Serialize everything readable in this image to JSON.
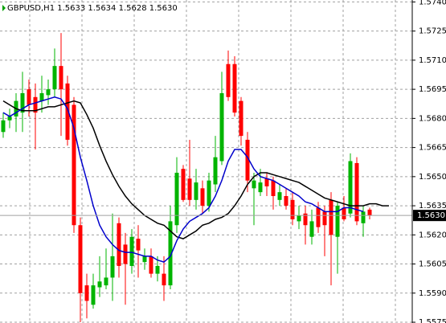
{
  "chart_data": {
    "type": "candlestick",
    "title": "GBPUSD,H1 1.5633 1.5634 1.5628 1.5630",
    "ohlc": {
      "open": [
        1.5673,
        1.5679,
        1.5681,
        1.5683,
        1.5695,
        1.5691,
        1.5689,
        1.5692,
        1.5695,
        1.5707,
        1.5698,
        1.5687,
        1.5625,
        1.5594,
        1.5584,
        1.5593,
        1.5594,
        1.5598,
        1.5626,
        1.5615,
        1.5604,
        1.5618,
        1.5606,
        1.5609,
        1.56,
        1.56,
        1.5594,
        1.5625,
        1.5654,
        1.5649,
        1.5638,
        1.5644,
        1.5635,
        1.5646,
        1.5658,
        1.5708,
        1.5708,
        1.5689,
        1.5669,
        1.5644,
        1.5642,
        1.5649,
        1.5648,
        1.5638,
        1.564,
        1.5638,
        1.5627,
        1.5631,
        1.5619,
        1.5634,
        1.5632,
        1.5638,
        1.5619,
        1.5634,
        1.5631,
        1.5657,
        1.5626,
        1.5633
      ],
      "high": [
        1.5683,
        1.5685,
        1.5693,
        1.5704,
        1.57,
        1.5698,
        1.5702,
        1.57,
        1.5716,
        1.5724,
        1.5702,
        1.5691,
        1.5629,
        1.56,
        1.56,
        1.5609,
        1.5613,
        1.5631,
        1.5629,
        1.5621,
        1.5623,
        1.5625,
        1.5613,
        1.5613,
        1.5609,
        1.5609,
        1.5635,
        1.566,
        1.5656,
        1.5669,
        1.5654,
        1.5648,
        1.5652,
        1.5671,
        1.5704,
        1.5715,
        1.5712,
        1.5691,
        1.5673,
        1.5652,
        1.5654,
        1.5652,
        1.565,
        1.5646,
        1.5644,
        1.5642,
        1.5635,
        1.5635,
        1.5633,
        1.5637,
        1.5635,
        1.5642,
        1.5637,
        1.564,
        1.5662,
        1.566,
        1.5635,
        1.5634
      ],
      "low": [
        1.567,
        1.5675,
        1.5673,
        1.5673,
        1.5681,
        1.5664,
        1.5683,
        1.5687,
        1.5691,
        1.5671,
        1.5666,
        1.5621,
        1.5575,
        1.5577,
        1.5582,
        1.5588,
        1.5592,
        1.5586,
        1.5598,
        1.5584,
        1.56,
        1.5598,
        1.5602,
        1.5598,
        1.5596,
        1.5586,
        1.5592,
        1.5621,
        1.5637,
        1.5635,
        1.5633,
        1.5631,
        1.5632,
        1.5642,
        1.5656,
        1.5689,
        1.5681,
        1.5666,
        1.5642,
        1.5625,
        1.564,
        1.564,
        1.5633,
        1.5635,
        1.5633,
        1.5625,
        1.5623,
        1.5615,
        1.5615,
        1.5621,
        1.5609,
        1.5594,
        1.56,
        1.5627,
        1.5629,
        1.5625,
        1.5619,
        1.5628
      ],
      "close": [
        1.5679,
        1.5681,
        1.5689,
        1.5693,
        1.5687,
        1.5683,
        1.5693,
        1.5695,
        1.5707,
        1.5695,
        1.5669,
        1.5625,
        1.559,
        1.5586,
        1.5594,
        1.5596,
        1.5598,
        1.5609,
        1.5604,
        1.5605,
        1.5619,
        1.5612,
        1.5609,
        1.56,
        1.5604,
        1.5594,
        1.5627,
        1.5652,
        1.5638,
        1.5638,
        1.5647,
        1.5635,
        1.5648,
        1.566,
        1.5693,
        1.5691,
        1.5683,
        1.5671,
        1.5648,
        1.5648,
        1.5647,
        1.5645,
        1.564,
        1.5642,
        1.5635,
        1.5628,
        1.563,
        1.5625,
        1.5627,
        1.5624,
        1.5625,
        1.562,
        1.5635,
        1.5628,
        1.5658,
        1.5627,
        1.5632,
        1.563
      ]
    },
    "up_color": "#00b400",
    "down_color": "#ff0000",
    "lines": [
      {
        "color": "#000000",
        "values": [
          1.5689,
          1.5687,
          1.5685,
          1.5684,
          1.5684,
          1.5684,
          1.5685,
          1.5686,
          1.5686,
          1.5687,
          1.5688,
          1.5689,
          1.5688,
          1.5682,
          1.5675,
          1.5666,
          1.5658,
          1.5651,
          1.5645,
          1.564,
          1.5636,
          1.5633,
          1.563,
          1.5628,
          1.5626,
          1.5625,
          1.5622,
          1.5619,
          1.5618,
          1.562,
          1.5622,
          1.5625,
          1.5626,
          1.5628,
          1.5629,
          1.5631,
          1.5635,
          1.564,
          1.5646,
          1.565,
          1.5652,
          1.5652,
          1.5651,
          1.565,
          1.5649,
          1.5648,
          1.5647,
          1.5645,
          1.5643,
          1.5641,
          1.5639,
          1.5638,
          1.5637,
          1.5636,
          1.5635,
          1.5635,
          1.5635,
          1.5636,
          1.5636,
          1.5635,
          1.5635
        ]
      },
      {
        "color": "#0000cc",
        "values": [
          1.5683,
          1.5681,
          1.5683,
          1.5685,
          1.5687,
          1.5688,
          1.5689,
          1.569,
          1.5691,
          1.569,
          1.5685,
          1.5675,
          1.566,
          1.5648,
          1.5635,
          1.5625,
          1.5619,
          1.5615,
          1.5612,
          1.5611,
          1.5611,
          1.561,
          1.5609,
          1.5609,
          1.5607,
          1.5606,
          1.5609,
          1.5617,
          1.5623,
          1.5627,
          1.5629,
          1.5631,
          1.5634,
          1.564,
          1.5648,
          1.5658,
          1.5664,
          1.5664,
          1.566,
          1.5654,
          1.565,
          1.5649,
          1.5648,
          1.5646,
          1.5644,
          1.5642,
          1.564,
          1.5637,
          1.5636,
          1.5634,
          1.5632,
          1.5632,
          1.5632,
          1.5634,
          1.5634,
          1.5633,
          1.5632,
          null,
          null,
          null,
          null
        ]
      }
    ],
    "ylim": [
      1.55746,
      1.5741
    ],
    "yticks": [
      {
        "value": 1.574,
        "label": "1.5740"
      },
      {
        "value": 1.5725,
        "label": "1.5725"
      },
      {
        "value": 1.571,
        "label": "1.5710"
      },
      {
        "value": 1.5695,
        "label": "1.5695"
      },
      {
        "value": 1.568,
        "label": "1.5680"
      },
      {
        "value": 1.5665,
        "label": "1.5665"
      },
      {
        "value": 1.565,
        "label": "1.5650"
      },
      {
        "value": 1.5635,
        "label": "1.5635"
      },
      {
        "value": 1.562,
        "label": "1.5620"
      },
      {
        "value": 1.5605,
        "label": "1.5605"
      },
      {
        "value": 1.559,
        "label": "1.5590"
      },
      {
        "value": 1.5575,
        "label": "1.5575"
      }
    ],
    "current_price": {
      "value": 1.563,
      "label": "1.5630"
    },
    "grid": true
  }
}
